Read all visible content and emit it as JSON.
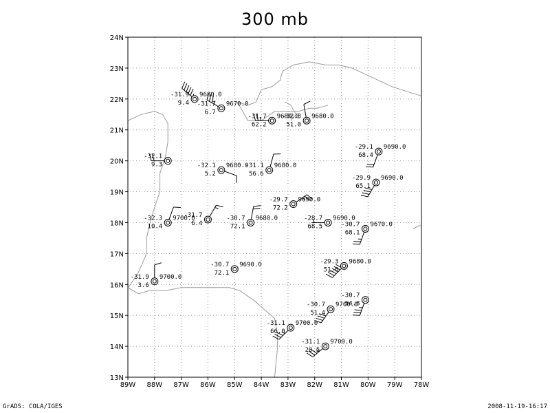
{
  "title": "300 mb",
  "footer": {
    "left": "GrADS: COLA/IGES",
    "right": "2008-11-19-16:17"
  },
  "map": {
    "lon_range": [
      -89,
      -78
    ],
    "lat_range": [
      13,
      24
    ],
    "grid": "dotted",
    "x_ticks": [
      {
        "lon": -89,
        "label": "89W"
      },
      {
        "lon": -88,
        "label": "88W"
      },
      {
        "lon": -87,
        "label": "87W"
      },
      {
        "lon": -86,
        "label": "86W"
      },
      {
        "lon": -85,
        "label": "85W"
      },
      {
        "lon": -84,
        "label": "84W"
      },
      {
        "lon": -83,
        "label": "83W"
      },
      {
        "lon": -82,
        "label": "82W"
      },
      {
        "lon": -81,
        "label": "81W"
      },
      {
        "lon": -80,
        "label": "80W"
      },
      {
        "lon": -79,
        "label": "79W"
      },
      {
        "lon": -78,
        "label": "78W"
      }
    ],
    "y_ticks": [
      {
        "lat": 13,
        "label": "13N"
      },
      {
        "lat": 14,
        "label": "14N"
      },
      {
        "lat": 15,
        "label": "15N"
      },
      {
        "lat": 16,
        "label": "16N"
      },
      {
        "lat": 17,
        "label": "17N"
      },
      {
        "lat": 18,
        "label": "18N"
      },
      {
        "lat": 19,
        "label": "19N"
      },
      {
        "lat": 20,
        "label": "20N"
      },
      {
        "lat": 21,
        "label": "21N"
      },
      {
        "lat": 22,
        "label": "22N"
      },
      {
        "lat": 23,
        "label": "23N"
      },
      {
        "lat": 24,
        "label": "24N"
      }
    ],
    "coastlines": [
      [
        [
          -89,
          21.3
        ],
        [
          -88.5,
          21.5
        ],
        [
          -88,
          21.6
        ],
        [
          -87.7,
          21.5
        ],
        [
          -87.5,
          21.2
        ],
        [
          -87.5,
          20.6
        ],
        [
          -87.6,
          20.1
        ],
        [
          -87.8,
          19.6
        ],
        [
          -87.8,
          19.0
        ],
        [
          -88,
          18.5
        ],
        [
          -88.2,
          17.9
        ],
        [
          -88.3,
          17.5
        ],
        [
          -88.3,
          17
        ],
        [
          -88.6,
          16.4
        ],
        [
          -88.9,
          16
        ],
        [
          -89,
          15.9
        ]
      ],
      [
        [
          -89,
          15.9
        ],
        [
          -88.6,
          15.7
        ],
        [
          -88.2,
          15.8
        ],
        [
          -87.6,
          15.8
        ],
        [
          -87,
          15.9
        ],
        [
          -86.2,
          15.9
        ],
        [
          -85.6,
          15.9
        ],
        [
          -85.2,
          15.9
        ],
        [
          -84.8,
          15.8
        ],
        [
          -84.3,
          15.5
        ],
        [
          -83.9,
          15.2
        ],
        [
          -83.5,
          14.9
        ],
        [
          -83.4,
          14.4
        ],
        [
          -83.4,
          13.9
        ],
        [
          -83.5,
          13.0
        ]
      ],
      [
        [
          -84.9,
          21.9
        ],
        [
          -84.5,
          21.8
        ],
        [
          -84.2,
          21.9
        ],
        [
          -84.0,
          22.3
        ],
        [
          -83.6,
          22.4
        ],
        [
          -83.3,
          22.6
        ],
        [
          -83.2,
          22.9
        ],
        [
          -82.8,
          23.1
        ],
        [
          -82.2,
          23.2
        ],
        [
          -81.6,
          23.1
        ],
        [
          -81.1,
          23.1
        ],
        [
          -80.6,
          23.0
        ],
        [
          -80.1,
          22.8
        ],
        [
          -79.6,
          22.6
        ],
        [
          -79.1,
          22.4
        ],
        [
          -78.4,
          22.2
        ],
        [
          -78.0,
          22.1
        ]
      ],
      [
        [
          -84.9,
          21.9
        ],
        [
          -84.5,
          21.3
        ],
        [
          -84.0,
          21.3
        ],
        [
          -83.5,
          21.6
        ],
        [
          -83.0,
          21.6
        ],
        [
          -82.6,
          21.6
        ],
        [
          -82.2,
          21.7
        ],
        [
          -81.9,
          21.7
        ],
        [
          -81.5,
          21.8
        ]
      ],
      [
        [
          -83.1,
          21.9
        ],
        [
          -82.9,
          21.8
        ],
        [
          -82.7,
          21.5
        ],
        [
          -82.9,
          21.3
        ]
      ],
      [
        [
          -78.3,
          17.8
        ],
        [
          -78.1,
          17.9
        ],
        [
          -78,
          17.9
        ]
      ]
    ]
  },
  "chart_data": {
    "type": "station_model",
    "level": "300 mb",
    "stations": [
      {
        "lon": -86.5,
        "lat": 22.0,
        "temp": "-31.9",
        "hgt": "9680.0",
        "dew": "9.4",
        "barb_dir": 310,
        "barb_speed": 55
      },
      {
        "lon": -85.5,
        "lat": 21.7,
        "temp": "-31.7",
        "hgt": "9670.0",
        "dew": "6.7",
        "barb_dir": 300,
        "barb_speed": 35
      },
      {
        "lon": -83.6,
        "lat": 21.3,
        "temp": "-31.7",
        "hgt": "9680.0",
        "dew": "62.2",
        "barb_dir": 270,
        "barb_speed": 25
      },
      {
        "lon": -82.3,
        "lat": 21.3,
        "temp": "-32.3",
        "hgt": "9680.0",
        "dew": "51.0",
        "barb_dir": 350,
        "barb_speed": 10
      },
      {
        "lon": -87.5,
        "lat": 20.0,
        "temp": "-32.1",
        "hgt": "",
        "dew": "9.3",
        "barb_dir": 270,
        "barb_speed": 20
      },
      {
        "lon": -85.5,
        "lat": 19.7,
        "temp": "-32.1",
        "hgt": "9680.0",
        "dew": "5.2",
        "barb_dir": 110,
        "barb_speed": 10
      },
      {
        "lon": -83.7,
        "lat": 19.7,
        "temp": "-31.1",
        "hgt": "9680.0",
        "dew": "56.6",
        "barb_dir": 15,
        "barb_speed": 10
      },
      {
        "lon": -79.6,
        "lat": 20.3,
        "temp": "-29.1",
        "hgt": "9690.0",
        "dew": "68.4",
        "barb_dir": 200,
        "barb_speed": 20
      },
      {
        "lon": -79.7,
        "lat": 19.3,
        "temp": "-29.9",
        "hgt": "9690.0",
        "dew": "65.1",
        "barb_dir": 210,
        "barb_speed": 40
      },
      {
        "lon": -82.8,
        "lat": 18.6,
        "temp": "-29.7",
        "hgt": "9690.0",
        "dew": "72.2",
        "barb_dir": 55,
        "barb_speed": 25
      },
      {
        "lon": -87.5,
        "lat": 18.0,
        "temp": "-32.3",
        "hgt": "9700.0",
        "dew": "10.4",
        "barb_dir": 20,
        "barb_speed": 10
      },
      {
        "lon": -86.0,
        "lat": 18.1,
        "temp": "-31.7",
        "hgt": "",
        "dew": "6.4",
        "barb_dir": 30,
        "barb_speed": 15
      },
      {
        "lon": -84.4,
        "lat": 18.0,
        "temp": "-30.7",
        "hgt": "9680.0",
        "dew": "72.1",
        "barb_dir": 10,
        "barb_speed": 20
      },
      {
        "lon": -81.5,
        "lat": 18.0,
        "temp": "-28.7",
        "hgt": "9690.0",
        "dew": "68.5",
        "barb_dir": 270,
        "barb_speed": 5
      },
      {
        "lon": -80.1,
        "lat": 17.8,
        "temp": "-30.7",
        "hgt": "9670.0",
        "dew": "68.1",
        "barb_dir": 200,
        "barb_speed": 25
      },
      {
        "lon": -88.0,
        "lat": 16.1,
        "temp": "-31.9",
        "hgt": "9700.0",
        "dew": "3.6",
        "barb_dir": 0,
        "barb_speed": 10
      },
      {
        "lon": -85.0,
        "lat": 16.5,
        "temp": "-30.7",
        "hgt": "9690.0",
        "dew": "72.1",
        "barb_dir": 0,
        "barb_speed": 0
      },
      {
        "lon": -80.9,
        "lat": 16.6,
        "temp": "-29.3",
        "hgt": "9680.0",
        "dew": "51.6",
        "barb_dir": 225,
        "barb_speed": 60
      },
      {
        "lon": -81.4,
        "lat": 15.2,
        "temp": "-30.7",
        "hgt": "9700.0",
        "dew": "51.4",
        "barb_dir": 215,
        "barb_speed": 40
      },
      {
        "lon": -80.1,
        "lat": 15.5,
        "temp": "-30.7",
        "hgt": "",
        "dew": "54.8",
        "barb_dir": 200,
        "barb_speed": 35
      },
      {
        "lon": -82.9,
        "lat": 14.6,
        "temp": "-31.1",
        "hgt": "9700.0",
        "dew": "66.0",
        "barb_dir": 225,
        "barb_speed": 35
      },
      {
        "lon": -81.6,
        "lat": 14.0,
        "temp": "-31.1",
        "hgt": "9700.0",
        "dew": "20.5",
        "barb_dir": 230,
        "barb_speed": 35
      }
    ]
  }
}
